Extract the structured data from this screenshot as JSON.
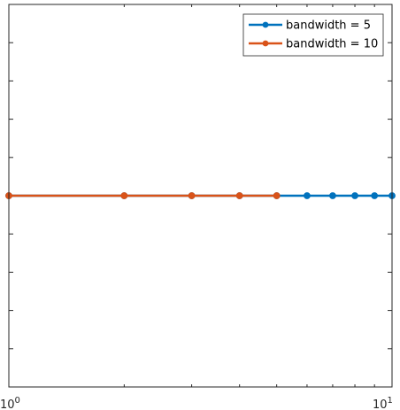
{
  "chart_data": {
    "type": "line",
    "x_scale": "log",
    "xlim": [
      1,
      10
    ],
    "ylim": [
      0,
      2
    ],
    "grid": false,
    "legend_position": "top-right",
    "x_tick_labels": [
      {
        "value": 1,
        "base": "10",
        "exp": "0"
      },
      {
        "value": 10,
        "base": "10",
        "exp": "1"
      }
    ],
    "series": [
      {
        "name": "bandwidth = 5",
        "color": "#0072BD",
        "marker": "circle",
        "x": [
          1,
          2,
          3,
          4,
          5,
          6,
          7,
          8,
          9,
          10
        ],
        "y": [
          1,
          1,
          1,
          1,
          1,
          1,
          1,
          1,
          1,
          1
        ]
      },
      {
        "name": "bandwidth = 10",
        "color": "#D95319",
        "marker": "circle",
        "x": [
          1,
          2,
          3,
          4,
          5
        ],
        "y": [
          1,
          1,
          1,
          1,
          1
        ]
      }
    ]
  }
}
